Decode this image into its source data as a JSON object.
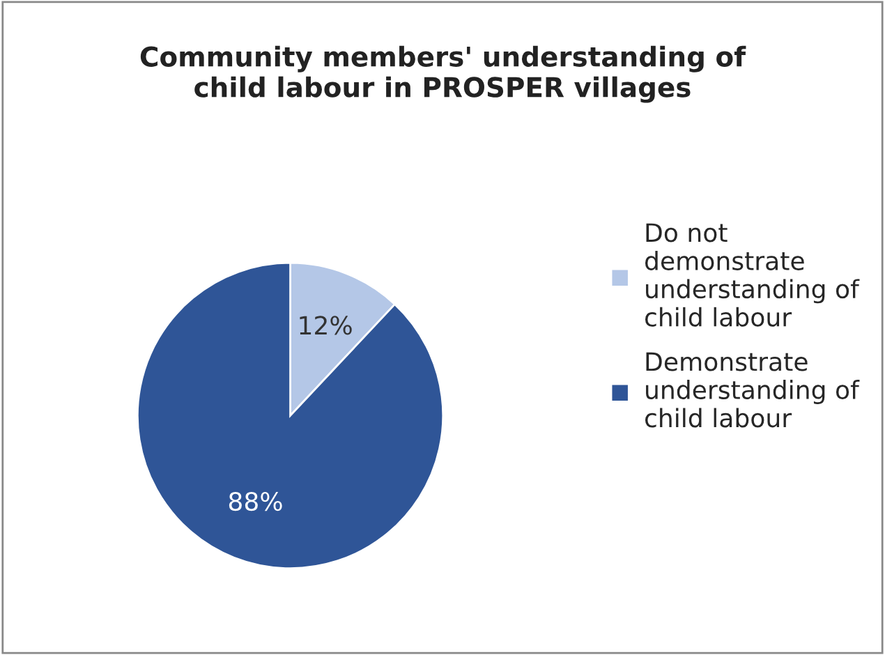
{
  "chart_data": {
    "type": "pie",
    "title": "Community members' understanding of\nchild labour in PROSPER villages",
    "categories": [
      "Do not\ndemonstrate\nunderstanding of\nchild labour",
      "Demonstrate\nunderstanding of\nchild labour"
    ],
    "values": [
      12,
      88
    ],
    "colors": [
      "#b4c7e7",
      "#2f5597"
    ],
    "value_labels": [
      "12%",
      "88%"
    ],
    "legend": "right"
  }
}
